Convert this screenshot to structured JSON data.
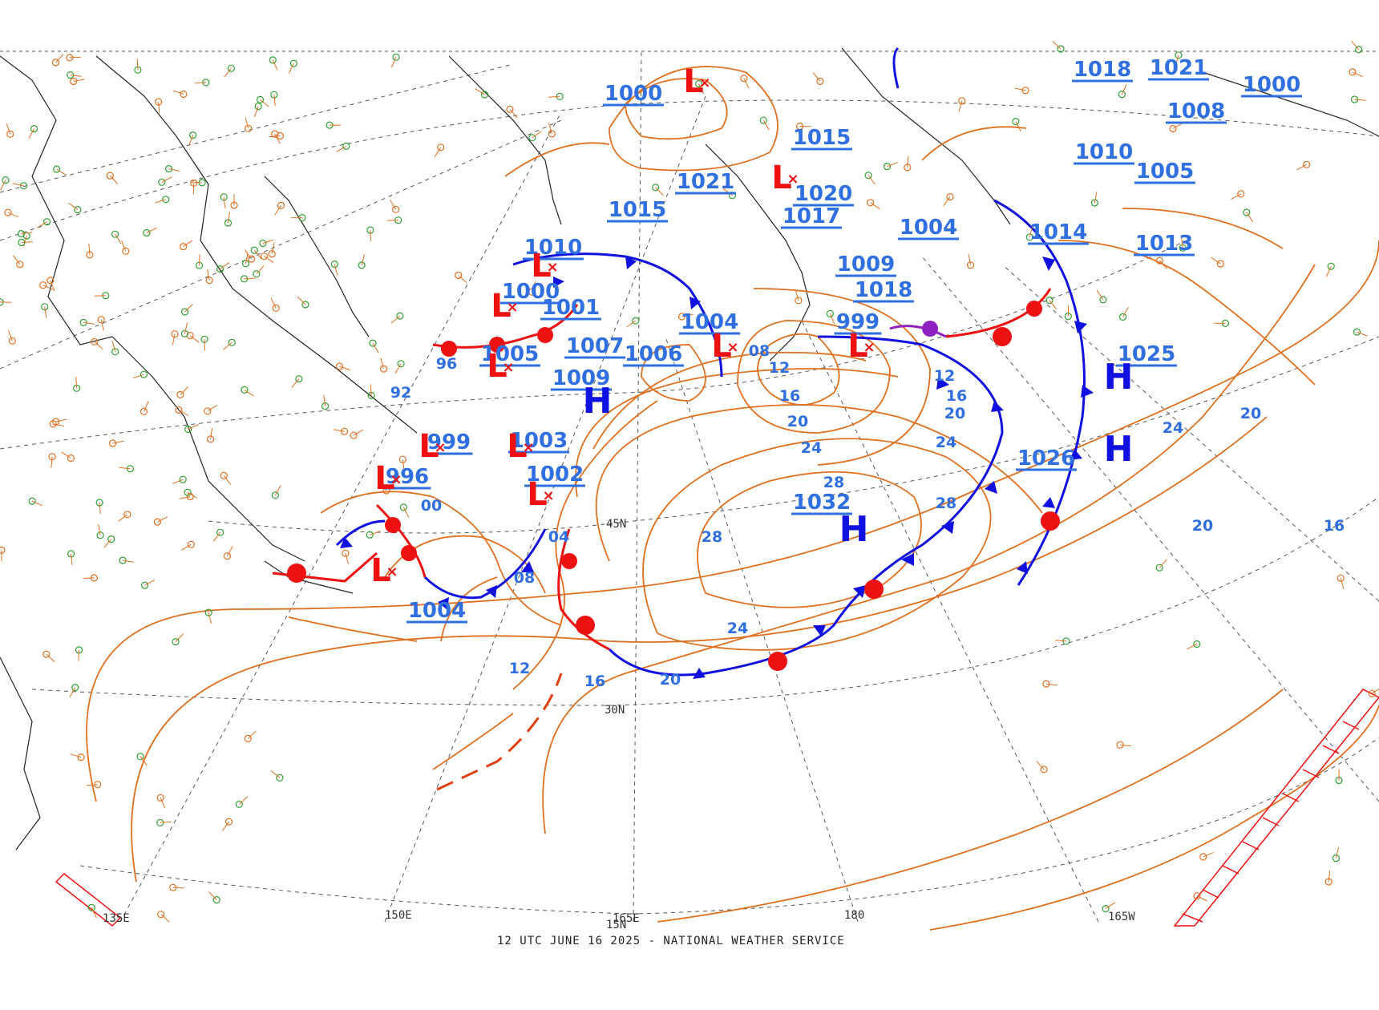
{
  "caption": "12 UTC JUNE 16 2025 - NATIONAL WEATHER SERVICE",
  "colors": {
    "isobar": "#e07020",
    "label": "#2f6fe0",
    "high": "#1010e0",
    "low": "#ee1111",
    "cold_front": "#1010e0",
    "warm_front": "#ee1111",
    "occluded_front": "#9020c0",
    "graticule": "#555555",
    "coast": "#222222"
  },
  "grid_labels": {
    "lon_135e": "135E",
    "lon_150e": "150E",
    "lon_165e": "165E",
    "lon_180": "180",
    "lon_165w": "165W",
    "lat_45n": "45N",
    "lat_30n": "30N",
    "lat_15n": "15N"
  },
  "centers": [
    {
      "type": "H",
      "value": "1032",
      "id": "h1032"
    },
    {
      "type": "H",
      "value": "1026",
      "id": "h1026"
    },
    {
      "type": "H",
      "value": "1025",
      "id": "h1025"
    },
    {
      "type": "H",
      "value": "1009",
      "id": "h1009"
    },
    {
      "type": "L",
      "value": "999",
      "id": "l999e"
    },
    {
      "type": "L",
      "value": "1004",
      "id": "l1004n"
    },
    {
      "type": "L",
      "value": "1000",
      "id": "l1000n"
    },
    {
      "type": "L",
      "value": "1021",
      "id": "l1021"
    },
    {
      "type": "L",
      "value": "1002",
      "id": "l1002"
    },
    {
      "type": "L",
      "value": "1003",
      "id": "l1003"
    },
    {
      "type": "L",
      "value": "999",
      "id": "l999w"
    },
    {
      "type": "L",
      "value": "996",
      "id": "l996"
    },
    {
      "type": "L",
      "value": "1004",
      "id": "l1004s"
    },
    {
      "type": "L",
      "value": "1005",
      "id": "l1005"
    },
    {
      "type": "L",
      "value": "1010",
      "id": "l1010"
    },
    {
      "type": "L",
      "value": "1000",
      "id": "l1000w"
    }
  ],
  "pressure_labels": [
    "1015",
    "1006",
    "1007",
    "1001",
    "1017",
    "1020",
    "1009",
    "1018",
    "1004",
    "1014",
    "1013",
    "1010",
    "1008",
    "1005",
    "1021",
    "1015",
    "1018",
    "1000"
  ],
  "isobar_labels": [
    "28",
    "28",
    "28",
    "24",
    "24",
    "24",
    "24",
    "20",
    "20",
    "20",
    "20",
    "20",
    "16",
    "16",
    "16",
    "16",
    "12",
    "12",
    "12",
    "08",
    "08",
    "04",
    "00",
    "92",
    "96"
  ]
}
